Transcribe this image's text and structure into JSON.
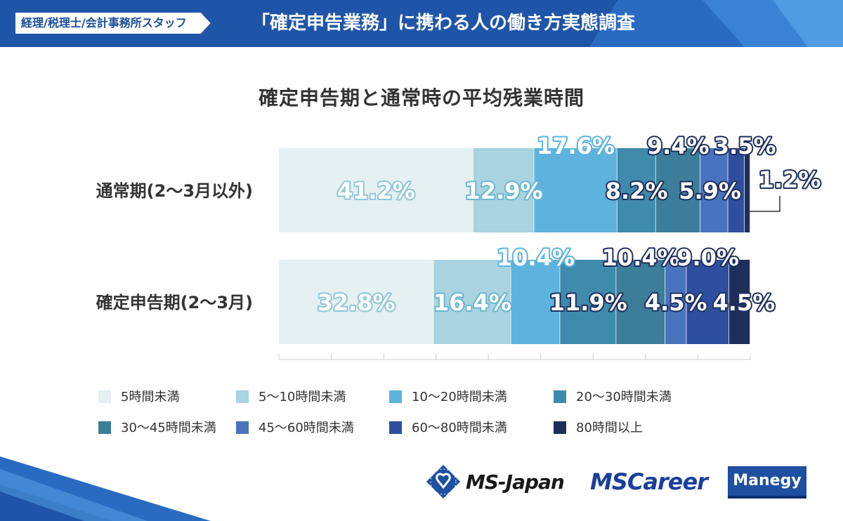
{
  "header": {
    "tag": "経理/税理士/会計事務所スタッフ",
    "title": "「確定申告業務」に携わる人の働き方実態調査"
  },
  "chart_data": {
    "type": "bar",
    "orientation": "horizontal",
    "stacked": true,
    "title": "確定申告期と通常時の平均残業時間",
    "categories": [
      "通常期(2～3月以外)",
      "確定申告期(2～3月)"
    ],
    "series": [
      {
        "name": "5時間未満",
        "color": "#e4f0f2",
        "values": [
          41.2,
          32.8
        ],
        "labels": [
          "41.2%",
          "32.8%"
        ]
      },
      {
        "name": "5～10時間未満",
        "color": "#a8d3df",
        "values": [
          12.9,
          16.4
        ],
        "labels": [
          "12.9%",
          "16.4%"
        ]
      },
      {
        "name": "10～20時間未満",
        "color": "#5db3de",
        "values": [
          17.6,
          10.4
        ],
        "labels": [
          "17.6%",
          "10.4%"
        ]
      },
      {
        "name": "20～30時間未満",
        "color": "#3f8bab",
        "values": [
          8.2,
          11.9
        ],
        "labels": [
          "8.2%",
          "11.9%"
        ]
      },
      {
        "name": "30～45時間未満",
        "color": "#3c7e99",
        "values": [
          9.4,
          10.4
        ],
        "labels": [
          "9.4%",
          "10.4%"
        ]
      },
      {
        "name": "45～60時間未満",
        "color": "#4a73bf",
        "values": [
          5.9,
          4.5
        ],
        "labels": [
          "5.9%",
          "4.5%"
        ]
      },
      {
        "name": "60～80時間未満",
        "color": "#2e4f9f",
        "values": [
          3.5,
          9.0
        ],
        "labels": [
          "3.5%",
          "9.0%"
        ]
      },
      {
        "name": "80時間以上",
        "color": "#1e2f5c",
        "values": [
          1.2,
          4.5
        ],
        "labels": [
          "1.2%",
          "4.5%"
        ]
      }
    ],
    "xlim": [
      0,
      100
    ],
    "legend_position": "bottom"
  },
  "logos": {
    "msjapan": "MS-Japan",
    "mscareer": "MSCareer",
    "manegy": "Manegy"
  }
}
